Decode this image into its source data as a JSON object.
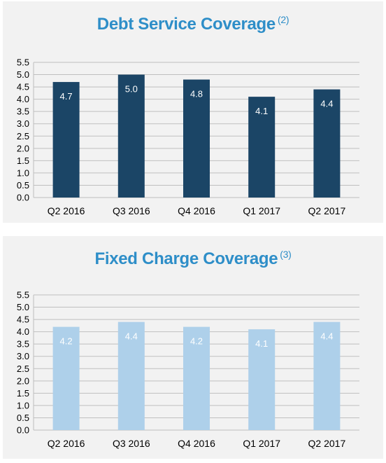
{
  "chart_data": [
    {
      "type": "bar",
      "title": "Debt Service Coverage",
      "title_note": "(2)",
      "categories": [
        "Q2 2016",
        "Q3 2016",
        "Q4 2016",
        "Q1 2017",
        "Q2 2017"
      ],
      "values": [
        4.7,
        5.0,
        4.8,
        4.1,
        4.4
      ],
      "data_labels": [
        "4.7",
        "5.0",
        "4.8",
        "4.1",
        "4.4"
      ],
      "ylim": [
        0,
        5.5
      ],
      "yticks": [
        "0.0",
        "0.5",
        "1.0",
        "1.5",
        "2.0",
        "2.5",
        "3.0",
        "3.5",
        "4.0",
        "4.5",
        "5.0",
        "5.5"
      ],
      "grid": true,
      "bar_color": "#1b4566",
      "label_color": "#ffffff"
    },
    {
      "type": "bar",
      "title": "Fixed Charge Coverage",
      "title_note": "(3)",
      "categories": [
        "Q2 2016",
        "Q3 2016",
        "Q4 2016",
        "Q1 2017",
        "Q2 2017"
      ],
      "values": [
        4.2,
        4.4,
        4.2,
        4.1,
        4.4
      ],
      "data_labels": [
        "4.2",
        "4.4",
        "4.2",
        "4.1",
        "4.4"
      ],
      "ylim": [
        0,
        5.5
      ],
      "yticks": [
        "0.0",
        "0.5",
        "1.0",
        "1.5",
        "2.0",
        "2.5",
        "3.0",
        "3.5",
        "4.0",
        "4.5",
        "5.0",
        "5.5"
      ],
      "grid": true,
      "bar_color": "#aed0ea",
      "label_color": "#ffffff"
    }
  ],
  "colors": {
    "title": "#2e8ec8",
    "panel_bg": "#f2f2f2",
    "grid": "#bfbfbf",
    "axis_text": "#000000"
  }
}
